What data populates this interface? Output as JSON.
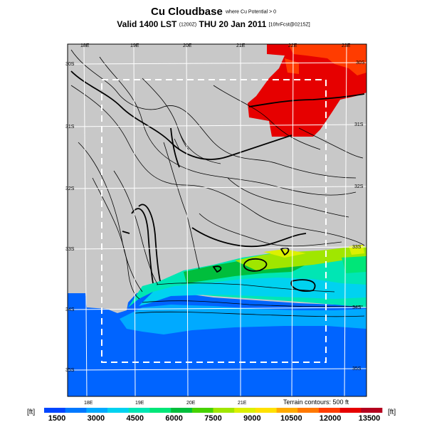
{
  "title": {
    "main": "Cu Cloudbase",
    "suffix": "where Cu Potential > 0"
  },
  "subtitle": {
    "main": "Valid 1400 LST",
    "z": "(1200Z)",
    "date": "THU 20 Jan 2011",
    "tail": "[10hrFcst@0215Z]"
  },
  "terrain_note": "Terrain contours: 500 ft",
  "colorbar": {
    "unit_left": "[ft]",
    "unit_right": "[ft]",
    "colors": [
      "#0046ff",
      "#0078ff",
      "#00aaff",
      "#00d2f0",
      "#00e6b4",
      "#00e678",
      "#00be3c",
      "#46d200",
      "#a0e600",
      "#dcf000",
      "#ffe100",
      "#ffaa00",
      "#ff7800",
      "#ff3c00",
      "#e60000",
      "#b4001e"
    ],
    "labels": [
      "1500",
      "3000",
      "4500",
      "6000",
      "7500",
      "9000",
      "10500",
      "12000",
      "13500"
    ]
  },
  "grid": {
    "lon_labels_top": [
      "18E",
      "19E",
      "20E",
      "21E",
      "22E",
      "23E"
    ],
    "lon_labels_bottom": [
      "18E",
      "19E",
      "20E",
      "21E"
    ],
    "lat_labels_left": [
      "30S",
      "31S",
      "32S",
      "33S",
      "34S",
      "35S"
    ],
    "lat_labels_right": [
      "30S",
      "31S",
      "32S",
      "33S",
      "34S",
      "35S"
    ]
  }
}
